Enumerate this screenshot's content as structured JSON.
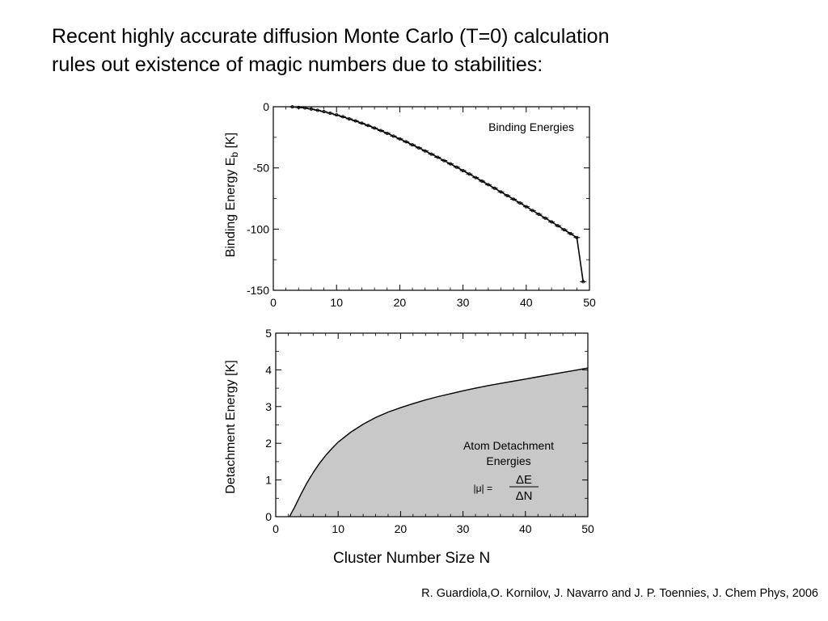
{
  "slide": {
    "headline_line1": "Recent highly accurate diffusion Monte Carlo (T=0) calculation",
    "headline_line2": "rules out existence of magic numbers due to stabilities:",
    "citation": "R. Guardiola,O. Kornilov, J. Navarro and J. P. Toennies,  J. Chem Phys, 2006",
    "shared_xlabel": "Cluster Number Size N"
  },
  "chart_data": [
    {
      "type": "line",
      "legend_text": "Binding Energies",
      "ylabel_main": "Binding Energy E",
      "ylabel_sub": "b",
      "ylabel_unit": " [K]",
      "xlim": [
        0,
        50
      ],
      "ylim": [
        -150,
        0
      ],
      "xticks": [
        0,
        10,
        20,
        30,
        40,
        50
      ],
      "yticks": [
        0,
        -50,
        -100,
        -150
      ],
      "x": [
        3,
        4,
        5,
        6,
        7,
        8,
        9,
        10,
        11,
        12,
        13,
        14,
        15,
        16,
        17,
        18,
        19,
        20,
        21,
        22,
        23,
        24,
        25,
        26,
        27,
        28,
        29,
        30,
        31,
        32,
        33,
        34,
        35,
        36,
        37,
        38,
        39,
        40,
        41,
        42,
        43,
        44,
        45,
        46,
        47,
        48,
        49
      ],
      "y": [
        -0.1,
        -0.5,
        -1.0,
        -1.9,
        -2.9,
        -4.0,
        -5.3,
        -6.7,
        -8.2,
        -9.9,
        -11.6,
        -13.5,
        -15.4,
        -17.4,
        -19.5,
        -21.7,
        -24.0,
        -26.3,
        -28.7,
        -31.1,
        -33.6,
        -36.1,
        -38.7,
        -41.3,
        -44.0,
        -46.7,
        -49.4,
        -52.2,
        -55.0,
        -57.9,
        -60.8,
        -63.7,
        -66.6,
        -69.6,
        -72.6,
        -75.6,
        -78.6,
        -81.7,
        -84.8,
        -87.9,
        -91.0,
        -94.1,
        -97.3,
        -100.5,
        -103.7,
        -106.9,
        -143.0
      ]
    },
    {
      "type": "area",
      "annotation_line1": "Atom Detachment",
      "annotation_line2": "Energies",
      "formula_lhs": "|μ| =",
      "formula_num": "ΔE",
      "formula_den": "ΔN",
      "ylabel": "Detachment Energy [K]",
      "xlim": [
        0,
        50
      ],
      "ylim": [
        0,
        5
      ],
      "xticks": [
        0,
        10,
        20,
        30,
        40,
        50
      ],
      "yticks": [
        0,
        1,
        2,
        3,
        4,
        5
      ],
      "x": [
        2.2,
        3,
        4,
        5,
        6,
        7,
        8,
        9,
        10,
        12,
        14,
        16,
        18,
        20,
        22,
        24,
        26,
        28,
        30,
        32,
        34,
        36,
        38,
        40,
        42,
        44,
        46,
        48,
        50
      ],
      "y": [
        0.0,
        0.25,
        0.6,
        0.92,
        1.2,
        1.45,
        1.67,
        1.86,
        2.03,
        2.3,
        2.52,
        2.7,
        2.85,
        2.97,
        3.08,
        3.18,
        3.27,
        3.35,
        3.43,
        3.5,
        3.57,
        3.63,
        3.69,
        3.75,
        3.81,
        3.87,
        3.93,
        3.99,
        4.05
      ],
      "fill_color": "#c8c8c8"
    }
  ]
}
